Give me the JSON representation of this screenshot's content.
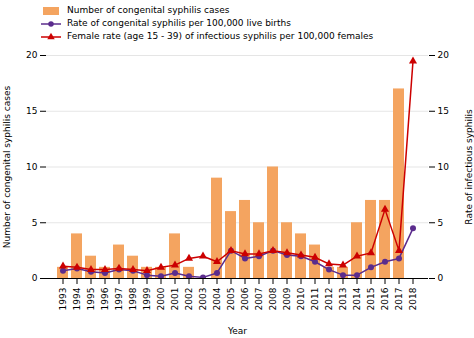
{
  "chart_data": {
    "type": "bar",
    "xlabel": "Year",
    "ylabel": "Number of congenital syphilis cases",
    "y2label": "Rate of infectious syphilis",
    "categories": [
      "1993",
      "1994",
      "1995",
      "1996",
      "1997",
      "1998",
      "1999",
      "2000",
      "2001",
      "2002",
      "2003",
      "2004",
      "2005",
      "2006",
      "2007",
      "2008",
      "2009",
      "2010",
      "2011",
      "2012",
      "2013",
      "2014",
      "2015",
      "2016",
      "2017",
      "2018"
    ],
    "series": [
      {
        "name": "Number of congenital syphilis cases",
        "type": "bar",
        "color": "#F4A460",
        "values": [
          1,
          4,
          2,
          1,
          3,
          2,
          1,
          1,
          4,
          1,
          0,
          9,
          6,
          7,
          5,
          10,
          5,
          4,
          3,
          1,
          1,
          5,
          7,
          7,
          17,
          0
        ]
      },
      {
        "name": "Rate of congenital syphilis per 100,000 live births",
        "type": "line",
        "axis": "y2",
        "color": "#5B2C8D",
        "marker": "circle",
        "values": [
          0.7,
          0.9,
          0.6,
          0.5,
          0.8,
          0.7,
          0.3,
          0.2,
          0.5,
          0.2,
          0.1,
          0.5,
          2.5,
          1.8,
          2.0,
          2.5,
          2.1,
          2.0,
          1.5,
          0.8,
          0.3,
          0.3,
          1.0,
          1.5,
          1.8,
          4.5
        ]
      },
      {
        "name": "Female rate (age 15 - 39) of infectious syphilis per 100,000 females",
        "type": "line",
        "axis": "y2",
        "color": "#CC0000",
        "marker": "triangle",
        "values": [
          1.1,
          1.0,
          0.8,
          0.8,
          0.9,
          0.8,
          0.7,
          1.0,
          1.2,
          1.8,
          2.0,
          1.5,
          2.5,
          2.2,
          2.2,
          2.5,
          2.3,
          2.1,
          1.9,
          1.3,
          1.2,
          2.0,
          2.3,
          6.2,
          2.5,
          19.5
        ]
      }
    ],
    "ylim": [
      0,
      20
    ],
    "yticks": [
      0,
      5,
      10,
      15,
      20
    ],
    "y2lim": [
      0,
      20
    ],
    "y2ticks": [
      0,
      5,
      10,
      15,
      20
    ],
    "grid": true,
    "legend": "top"
  }
}
